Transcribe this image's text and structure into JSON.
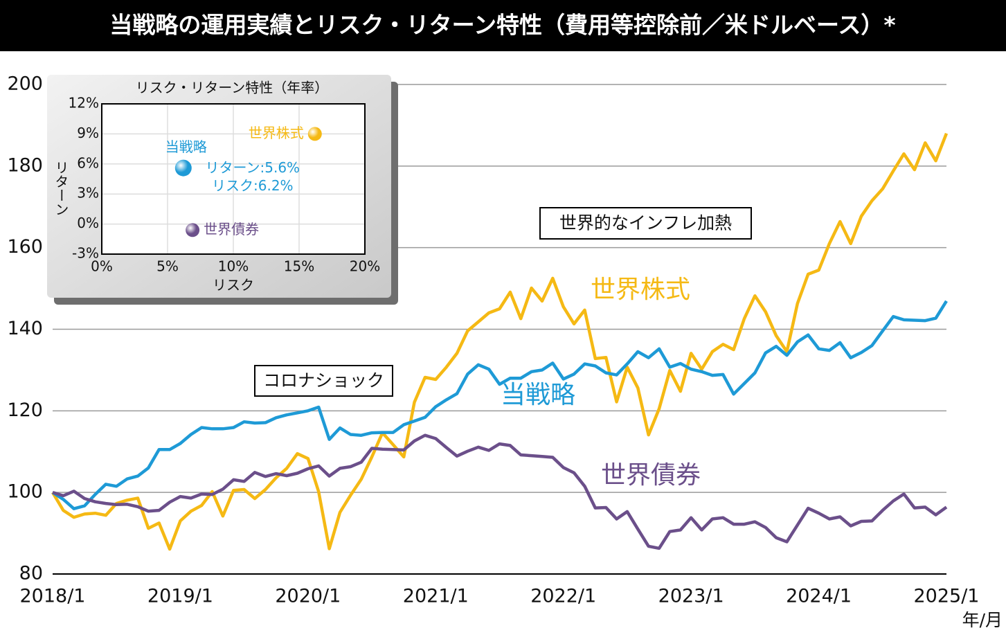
{
  "title": "当戦略の運用実績とリスク・リターン特性（費用等控除前／米ドルベース）*",
  "chart_data": [
    {
      "type": "line",
      "x_label": "年/月",
      "annotations": [
        "世界的なインフレ加熱",
        "コロナショック"
      ],
      "x": [
        "2018/1",
        "2018/2",
        "2018/3",
        "2018/4",
        "2018/5",
        "2018/6",
        "2018/7",
        "2018/8",
        "2018/9",
        "2018/10",
        "2018/11",
        "2018/12",
        "2019/1",
        "2019/2",
        "2019/3",
        "2019/4",
        "2019/5",
        "2019/6",
        "2019/7",
        "2019/8",
        "2019/9",
        "2019/10",
        "2019/11",
        "2019/12",
        "2020/1",
        "2020/2",
        "2020/3",
        "2020/4",
        "2020/5",
        "2020/6",
        "2020/7",
        "2020/8",
        "2020/9",
        "2020/10",
        "2020/11",
        "2020/12",
        "2021/1",
        "2021/2",
        "2021/3",
        "2021/4",
        "2021/5",
        "2021/6",
        "2021/7",
        "2021/8",
        "2021/9",
        "2021/10",
        "2021/11",
        "2021/12",
        "2022/1",
        "2022/2",
        "2022/3",
        "2022/4",
        "2022/5",
        "2022/6",
        "2022/7",
        "2022/8",
        "2022/9",
        "2022/10",
        "2022/11",
        "2022/12",
        "2023/1",
        "2023/2",
        "2023/3",
        "2023/4",
        "2023/5",
        "2023/6",
        "2023/7",
        "2023/8",
        "2023/9",
        "2023/10",
        "2023/11",
        "2023/12",
        "2024/1",
        "2024/2",
        "2024/3",
        "2024/4",
        "2024/5",
        "2024/6",
        "2024/7",
        "2024/8",
        "2024/9",
        "2024/10",
        "2024/11",
        "2024/12",
        "2025/1"
      ],
      "ylim": [
        80,
        200
      ],
      "yticks": [
        80,
        100,
        120,
        140,
        160,
        180,
        200
      ],
      "grid": true,
      "series": [
        {
          "name": "世界株式",
          "color": "#f5b914",
          "values": [
            100,
            95.6,
            93.9,
            94.7,
            94.9,
            94.4,
            97.3,
            98.1,
            98.6,
            91.2,
            92.5,
            86.1,
            93.0,
            95.4,
            96.8,
            100.2,
            94.2,
            100.5,
            100.7,
            98.5,
            100.7,
            103.6,
            105.9,
            109.5,
            108.3,
            100.2,
            86.2,
            95.1,
            99.3,
            103.2,
            108.7,
            114.6,
            111.7,
            108.7,
            122.1,
            128.2,
            127.7,
            130.7,
            134.1,
            139.6,
            141.8,
            144.0,
            145.0,
            149.1,
            142.6,
            150.1,
            146.9,
            152.5,
            145.5,
            141.3,
            144.7,
            132.8,
            133.1,
            122.2,
            130.7,
            125.6,
            114.1,
            120.5,
            129.9,
            124.8,
            134.1,
            130.2,
            134.5,
            136.3,
            135.0,
            142.6,
            148.2,
            144.3,
            138.4,
            134.5,
            146.3,
            153.5,
            154.5,
            161.0,
            166.4,
            161.0,
            167.7,
            171.5,
            174.4,
            178.8,
            183.0,
            179.1,
            185.7,
            181.3,
            188.0
          ]
        },
        {
          "name": "当戦略",
          "color": "#1e9ad6",
          "values": [
            100,
            98.3,
            96.0,
            96.7,
            99.5,
            102.0,
            101.5,
            103.3,
            104.0,
            106.0,
            110.5,
            110.5,
            112.0,
            114.2,
            115.9,
            115.6,
            115.6,
            115.9,
            117.3,
            117.0,
            117.1,
            118.3,
            119.0,
            119.5,
            120.0,
            120.9,
            113.0,
            115.8,
            114.2,
            114.0,
            114.6,
            114.7,
            114.7,
            116.6,
            117.5,
            118.4,
            121.0,
            122.7,
            124.2,
            129.0,
            131.3,
            130.2,
            126.5,
            128.0,
            128.0,
            129.6,
            130.0,
            131.7,
            127.8,
            129.0,
            131.5,
            131.0,
            129.3,
            128.8,
            131.5,
            134.5,
            133.0,
            135.2,
            130.7,
            131.6,
            130.2,
            129.6,
            128.7,
            128.9,
            124.1,
            126.7,
            129.3,
            134.2,
            135.8,
            133.6,
            136.9,
            138.6,
            135.2,
            134.8,
            136.7,
            133.0,
            134.3,
            136.0,
            139.6,
            143.1,
            142.3,
            142.2,
            142.1,
            142.7,
            146.9
          ]
        },
        {
          "name": "世界債券",
          "color": "#6b4f8a",
          "values": [
            100,
            99.2,
            100.3,
            98.5,
            97.7,
            97.3,
            97.0,
            97.1,
            96.5,
            95.4,
            95.6,
            97.6,
            99.0,
            98.6,
            99.6,
            99.5,
            100.8,
            103.1,
            102.7,
            104.9,
            103.9,
            104.6,
            104.1,
            104.7,
            105.8,
            106.5,
            104.0,
            105.9,
            106.3,
            107.4,
            110.8,
            110.6,
            110.5,
            110.4,
            112.6,
            114.0,
            113.2,
            111.0,
            108.9,
            110.1,
            111.1,
            110.3,
            111.9,
            111.5,
            109.2,
            109.0,
            108.8,
            108.6,
            106.1,
            104.8,
            101.5,
            96.2,
            96.3,
            93.5,
            95.3,
            91.0,
            86.8,
            86.3,
            90.4,
            90.8,
            93.8,
            90.8,
            93.5,
            93.8,
            92.2,
            92.2,
            92.8,
            91.4,
            88.9,
            87.9,
            92.0,
            96.1,
            94.9,
            93.5,
            94.0,
            91.8,
            92.9,
            93.0,
            95.6,
            97.9,
            99.6,
            96.2,
            96.4,
            94.5,
            96.4
          ]
        }
      ]
    },
    {
      "type": "scatter",
      "title": "リスク・リターン特性（年率）",
      "x_label": "リスク",
      "y_label": "リターン",
      "xlim": [
        0,
        20
      ],
      "ylim": [
        -3,
        12
      ],
      "xticks": [
        {
          "value": 0,
          "label": "0%"
        },
        {
          "value": 5,
          "label": "5%"
        },
        {
          "value": 10,
          "label": "10%"
        },
        {
          "value": 15,
          "label": "15%"
        },
        {
          "value": 20,
          "label": "20%"
        }
      ],
      "yticks": [
        {
          "value": -3,
          "label": "-3%"
        },
        {
          "value": 0,
          "label": "0%"
        },
        {
          "value": 3,
          "label": "3%"
        },
        {
          "value": 6,
          "label": "6%"
        },
        {
          "value": 9,
          "label": "9%"
        },
        {
          "value": 12,
          "label": "12%"
        }
      ],
      "grid": true,
      "series": [
        {
          "name": "世界株式",
          "color": "#f5b914",
          "x": [
            16.2
          ],
          "values": [
            9.0
          ]
        },
        {
          "name": "当戦略",
          "color": "#1e9ad6",
          "x": [
            6.2
          ],
          "values": [
            5.6
          ],
          "value_labels": [
            "リターン:5.6%"
          ],
          "x_labels": [
            "リスク:6.2%"
          ]
        },
        {
          "name": "世界債券",
          "color": "#6b4f8a",
          "x": [
            6.9
          ],
          "values": [
            -0.6
          ]
        }
      ]
    }
  ]
}
